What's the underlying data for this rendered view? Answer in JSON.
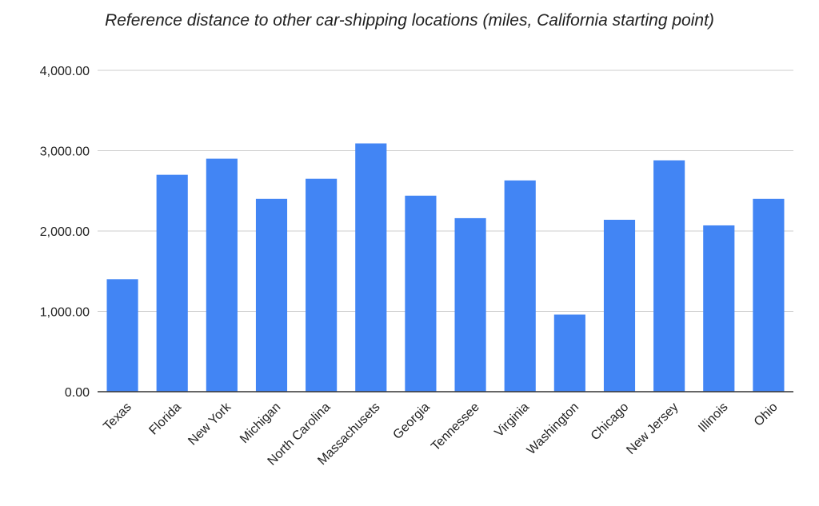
{
  "chart_data": {
    "type": "bar",
    "title": "Reference distance to other car-shipping locations (miles, California starting point)",
    "xlabel": "",
    "ylabel": "",
    "categories": [
      "Texas",
      "Florida",
      "New York",
      "Michigan",
      "North Carolina",
      "Massachusets",
      "Georgia",
      "Tennessee",
      "Virginia",
      "Washington",
      "Chicago",
      "New Jersey",
      "Illinois",
      "Ohio"
    ],
    "values": [
      1400,
      2700,
      2900,
      2400,
      2650,
      3090,
      2440,
      2160,
      2630,
      960,
      2140,
      2880,
      2070,
      2400
    ],
    "ylim": [
      0,
      4000
    ],
    "yticks": [
      0,
      1000,
      2000,
      3000,
      4000
    ],
    "ytick_labels": [
      "0.00",
      "1,000.00",
      "2,000.00",
      "3,000.00",
      "4,000.00"
    ],
    "grid": true,
    "legend": "none",
    "bar_color": "#4285f4",
    "grid_color": "#cccccc",
    "axis_color": "#333333"
  }
}
